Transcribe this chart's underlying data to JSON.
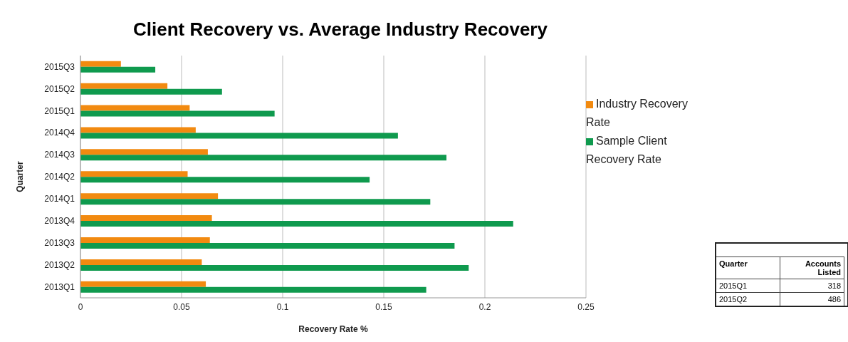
{
  "chart_data": {
    "type": "bar",
    "orientation": "horizontal",
    "title": "Client Recovery vs. Average Industry Recovery",
    "xlabel": "Recovery Rate %",
    "ylabel": "Quarter",
    "categories": [
      "2015Q3",
      "2015Q2",
      "2015Q1",
      "2014Q4",
      "2014Q3",
      "2014Q2",
      "2014Q1",
      "2013Q4",
      "2013Q3",
      "2013Q2",
      "2013Q1"
    ],
    "series": [
      {
        "name": "Industry Recovery Rate",
        "color": "#f28a10",
        "values": [
          0.02,
          0.043,
          0.054,
          0.057,
          0.063,
          0.053,
          0.068,
          0.065,
          0.064,
          0.06,
          0.062
        ]
      },
      {
        "name": "Sample Client Recovery Rate",
        "color": "#0f9a4e",
        "values": [
          0.037,
          0.07,
          0.096,
          0.157,
          0.181,
          0.143,
          0.173,
          0.214,
          0.185,
          0.192,
          0.171
        ]
      }
    ],
    "xlim": [
      0,
      0.25
    ],
    "xticks": [
      0,
      0.05,
      0.1,
      0.15,
      0.2,
      0.25
    ],
    "grid": "x",
    "legend": "right",
    "annotations": [
      "Quarter",
      "Accounts Listed",
      "2015Q1",
      "318",
      "2015Q2",
      "486"
    ]
  }
}
